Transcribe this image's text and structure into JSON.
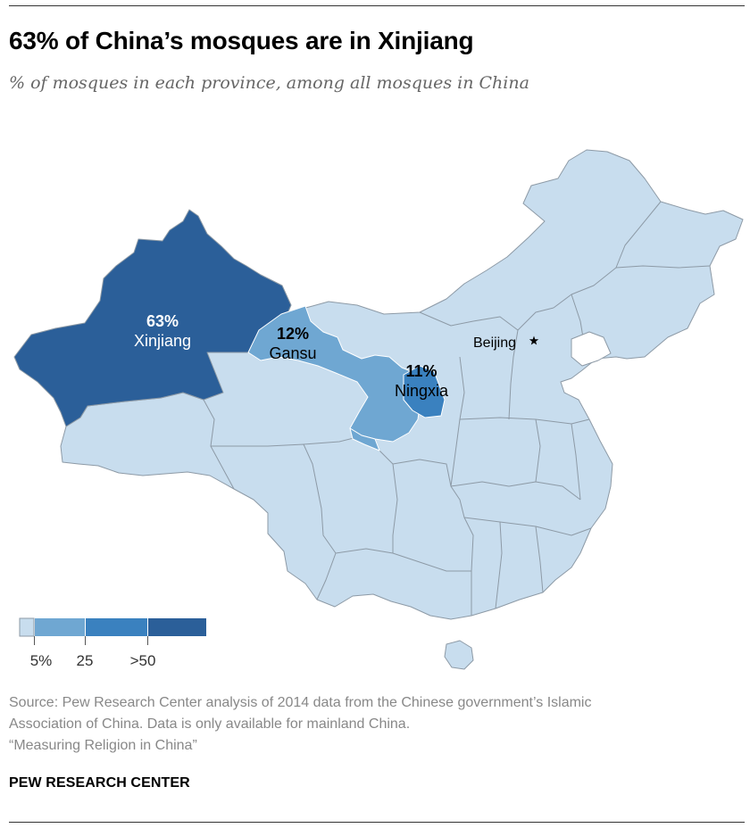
{
  "title": "63% of China’s mosques are in Xinjiang",
  "subtitle": "% of mosques in each province, among all mosques in China",
  "map": {
    "colors": {
      "under_5": "#c8ddee",
      "5_to_25": "#6fa7d2",
      "25_to_50": "#3a81bf",
      "over_50": "#2b5f99",
      "borders": "#8d9aa6"
    },
    "regions": [
      {
        "name": "Xinjiang",
        "pct_label": "63%",
        "value": 63
      },
      {
        "name": "Gansu",
        "pct_label": "12%",
        "value": 12
      },
      {
        "name": "Ningxia",
        "pct_label": "11%",
        "value": 11
      }
    ],
    "capital": {
      "name": "Beijing",
      "marker": "star-icon"
    }
  },
  "legend": {
    "ticks": [
      "5%",
      "25",
      ">50"
    ]
  },
  "source": {
    "line1": "Source: Pew Research Center analysis of 2014 data from the Chinese government’s Islamic",
    "line2": "Association of China. Data is only available for mainland China.",
    "line3": "“Measuring Religion in China”"
  },
  "brand": "PEW RESEARCH CENTER"
}
